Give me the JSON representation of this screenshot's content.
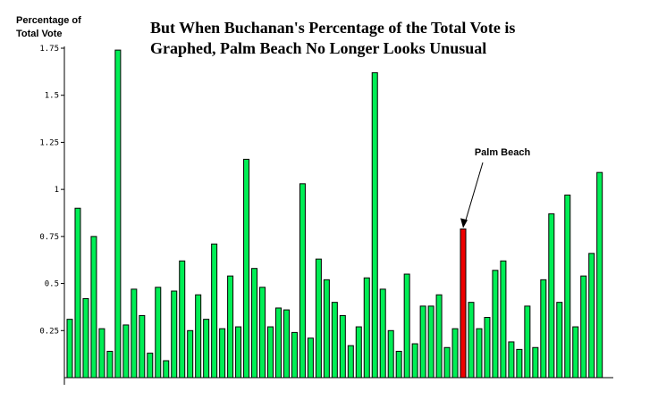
{
  "chart_data": {
    "type": "bar",
    "title_line1": "But When Buchanan's Percentage of the Total Vote is",
    "title_line2": "Graphed, Palm Beach No Longer Looks Unusual",
    "ylabel_line1": "Percentage of",
    "ylabel_line2": "Total Vote",
    "xlabel": "",
    "ylim": [
      0,
      1.75
    ],
    "yticks": [
      {
        "value": 0.25,
        "label": "0.25"
      },
      {
        "value": 0.5,
        "label": "0.5"
      },
      {
        "value": 0.75,
        "label": "0.75"
      },
      {
        "value": 1,
        "label": "1"
      },
      {
        "value": 1.25,
        "label": "1.25"
      },
      {
        "value": 1.5,
        "label": "1.5"
      },
      {
        "value": 1.75,
        "label": "1.75"
      }
    ],
    "values": [
      0.31,
      0.9,
      0.42,
      0.75,
      0.26,
      0.14,
      1.74,
      0.28,
      0.47,
      0.33,
      0.13,
      0.48,
      0.09,
      0.46,
      0.62,
      0.25,
      0.44,
      0.31,
      0.71,
      0.26,
      0.54,
      0.27,
      1.16,
      0.58,
      0.48,
      0.27,
      0.37,
      0.36,
      0.24,
      1.03,
      0.21,
      0.63,
      0.52,
      0.4,
      0.33,
      0.17,
      0.27,
      0.53,
      1.62,
      0.47,
      0.25,
      0.14,
      0.55,
      0.18,
      0.38,
      0.38,
      0.44,
      0.16,
      0.26,
      0.79,
      0.4,
      0.26,
      0.32,
      0.57,
      0.62,
      0.19,
      0.15,
      0.38,
      0.16,
      0.52,
      0.87,
      0.4,
      0.97,
      0.27,
      0.54,
      0.66,
      1.09
    ],
    "highlight_index": 49,
    "annotation": "Palm Beach",
    "bar_color": "#00ee55",
    "highlight_color": "#ee0000",
    "grid": false
  }
}
